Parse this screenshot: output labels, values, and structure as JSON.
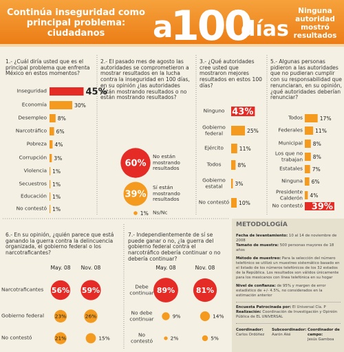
{
  "header": {
    "title": "Continúa inseguridad como principal problema: ciudadanos",
    "brand_prefix": "a",
    "brand_number": "100",
    "brand_suffix": "días",
    "tagline": "Ninguna autoridad mostró resultados"
  },
  "chart_data": [
    {
      "type": "hbar",
      "title": "1.- ¿Cuál diría usted que es el principal problema que enfrenta México en estos momentos?",
      "categories": [
        "Inseguridad",
        "Economía",
        "Desempleo",
        "Narcotráfico",
        "Pobreza",
        "Corrupción",
        "Violencia",
        "Secuestros",
        "Educación",
        "No contestó"
      ],
      "values": [
        45,
        30,
        8,
        6,
        4,
        3,
        1,
        1,
        1,
        1
      ],
      "value_labels": [
        "45%",
        "30%",
        "8%",
        "6%",
        "4%",
        "3%",
        "1%",
        "1%",
        "1%",
        "1%"
      ],
      "colors": [
        "#e42b26",
        "#f39a1f",
        "#f39a1f",
        "#f39a1f",
        "#f39a1f",
        "#f39a1f",
        "#f39a1f",
        "#f39a1f",
        "#f39a1f",
        "#f39a1f"
      ]
    },
    {
      "type": "bubble",
      "title": "2.- El pasado mes de agosto las autoridades se comprometieron a mostrar resultados en la lucha contra la inseguridad en 100 días, en su opinión ¿las autoridades están mostrando resultados o no están mostrando resultados?",
      "categories": [
        "No están mostrando resultados",
        "Sí están mostrando resultados",
        "Ns/Nc"
      ],
      "values": [
        60,
        39,
        1
      ],
      "value_labels": [
        "60%",
        "39%",
        "1%"
      ],
      "colors": [
        "#e42b26",
        "#f39a1f",
        "#f39a1f"
      ]
    },
    {
      "type": "hbar",
      "title": "3.- ¿Qué autoridades cree usted que mostraron mejores resultados en estos 100 días?",
      "categories": [
        "Ninguno",
        "Gobierno federal",
        "Ejército",
        "Todos",
        "Gobierno estatal",
        "No contestó"
      ],
      "values": [
        43,
        25,
        11,
        8,
        3,
        10
      ],
      "value_labels": [
        "43%",
        "25%",
        "11%",
        "8%",
        "3%",
        "10%"
      ],
      "colors": [
        "#e42b26",
        "#f39a1f",
        "#f39a1f",
        "#f39a1f",
        "#f39a1f",
        "#f39a1f"
      ]
    },
    {
      "type": "hbar",
      "title": "5.- Algunas personas pidieron a las autoridades que no pudieran cumplir con su responsabilidad que renunciaran, en su opinión, ¿qué autoridades deberían renunciar?",
      "categories": [
        "Todos",
        "Federales",
        "Municipal",
        "Los que no trabajan",
        "Estatales",
        "Ninguna",
        "Presidente Calderón",
        "No contestó"
      ],
      "values": [
        17,
        11,
        8,
        8,
        7,
        6,
        4,
        39
      ],
      "value_labels": [
        "17%",
        "11%",
        "8%",
        "8%",
        "7%",
        "6%",
        "4%",
        "39%"
      ],
      "colors": [
        "#f39a1f",
        "#f39a1f",
        "#f39a1f",
        "#f39a1f",
        "#f39a1f",
        "#f39a1f",
        "#f39a1f",
        "#e42b26"
      ]
    },
    {
      "type": "bubble-grid",
      "title": "6.- En su opinión, ¿quién parece que está ganando la guerra contra la delincuencia organizada, el gobierno federal o los narcotraficantes?",
      "categories": [
        "Narcotraficantes",
        "Gobierno federal",
        "No contestó"
      ],
      "colors": [
        "#e42b26",
        "#f39a1f",
        "#f39a1f"
      ],
      "series": [
        {
          "name": "May. 08",
          "values": [
            56,
            23,
            21
          ],
          "value_labels": [
            "56%",
            "23%",
            "21%"
          ]
        },
        {
          "name": "Nov. 08",
          "values": [
            59,
            26,
            15
          ],
          "value_labels": [
            "59%",
            "26%",
            "15%"
          ]
        }
      ]
    },
    {
      "type": "bubble-grid",
      "title": "7.- Independientemente de sí se puede ganar o no, ¿la guerra del gobierno federal contra el narcotráfico debería continuar o no debería continuar?",
      "categories": [
        "Debe continuar",
        "No debe continuar",
        "No contestó"
      ],
      "colors": [
        "#e42b26",
        "#f39a1f",
        "#f39a1f"
      ],
      "series": [
        {
          "name": "May. 08",
          "values": [
            89,
            9,
            2
          ],
          "value_labels": [
            "89%",
            "9%",
            "2%"
          ]
        },
        {
          "name": "Nov. 08",
          "values": [
            81,
            14,
            5
          ],
          "value_labels": [
            "81%",
            "14%",
            "5%"
          ]
        }
      ]
    }
  ],
  "methodology": {
    "title": "METODOLOGÍA",
    "items": [
      {
        "label": "Fecha de levantamiento:",
        "text": "10 al 14 de noviembre de 2008"
      },
      {
        "label": "Tamaño de muestra:",
        "text": "500 personas mayores de 18 años"
      },
      {
        "label": "Método de muestreo:",
        "text": "Para la selección del número telefónico se utilizó un muestreo sistemático basado en el listado de los números telefónicos de los 32 estados de la República. Los resultados son válidos únicamente para los mexicanos con línea telefónica en su hogar"
      },
      {
        "label": "Nivel de confianza:",
        "text": "de 95% y margen de error estadístico de +/- 4.5%, no considerados en la estimación anterior"
      }
    ],
    "sponsor": {
      "label": "Encuesta Patrocinada por:",
      "text": "El Universal Cía. P"
    },
    "realization": {
      "label": "Realización:",
      "text": "Coordinación de Investigación y Opinión Pública de EL UNIVERSAL"
    },
    "credits": [
      {
        "role": "Coordinador:",
        "name": "Carlos Ordóñez"
      },
      {
        "role": "Subcoordinador:",
        "name": "Aarón Aké"
      },
      {
        "role": "Coordinador de campo:",
        "name": "Jesús Gamboa"
      }
    ]
  }
}
